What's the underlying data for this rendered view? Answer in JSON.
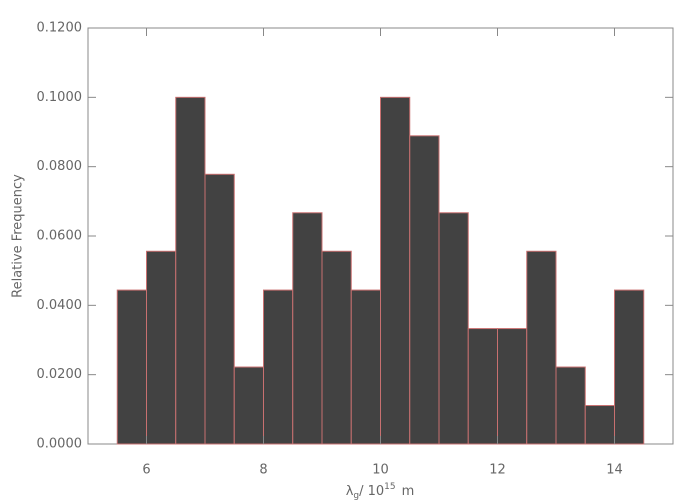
{
  "chart_data": {
    "type": "histogram",
    "ylabel": "Relative Frequency",
    "xlabel": {
      "symbol": "λ",
      "subscript": "g",
      "text": "/ 10",
      "superscript": "15",
      "unit": "m"
    },
    "bins": [
      5.5,
      6,
      6.5,
      7,
      7.5,
      8,
      8.5,
      9,
      9.5,
      10,
      10.5,
      11,
      11.5,
      12,
      12.5,
      13,
      13.5,
      14,
      14.5
    ],
    "values": [
      0.0444,
      0.0556,
      0.1,
      0.0778,
      0.0222,
      0.0444,
      0.0667,
      0.0556,
      0.0444,
      0.1,
      0.0889,
      0.0667,
      0.0333,
      0.0333,
      0.0556,
      0.0222,
      0.0111,
      0.0444
    ],
    "color": "#424242",
    "edgecolor": "#c87070",
    "xlim": [
      5,
      15
    ],
    "xticks": [
      6,
      8,
      10,
      12,
      14
    ],
    "ylim": [
      0,
      0.12
    ],
    "yticks": [
      {
        "value": 0,
        "label": "0.0000"
      },
      {
        "value": 0.02,
        "label": "0.0200"
      },
      {
        "value": 0.04,
        "label": "0.0400"
      },
      {
        "value": 0.06,
        "label": "0.0600"
      },
      {
        "value": 0.08,
        "label": "0.0800"
      },
      {
        "value": 0.1,
        "label": "0.1000"
      },
      {
        "value": 0.12,
        "label": "0.1200"
      }
    ]
  }
}
